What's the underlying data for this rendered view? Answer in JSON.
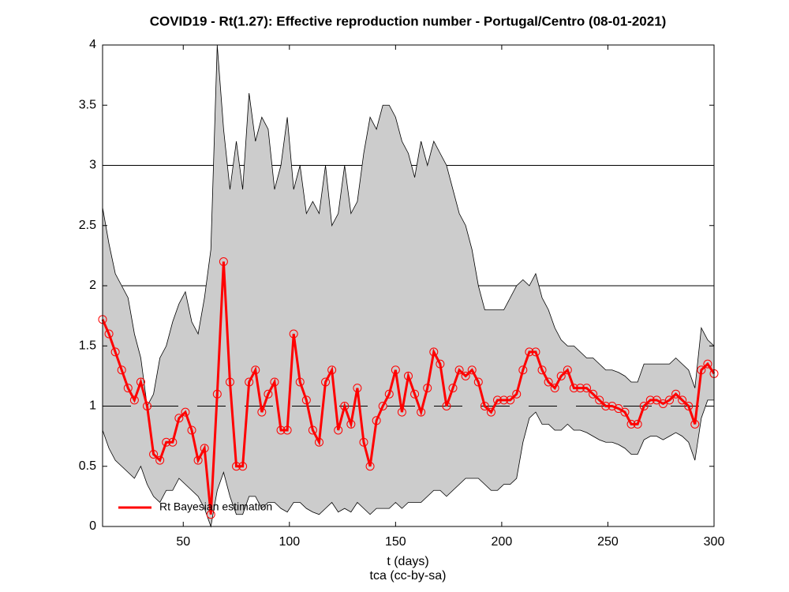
{
  "chart_data": {
    "type": "line",
    "title": "COVID19 - Rt(1.27): Effective reproduction number - Portugal/Centro (08-01-2021)",
    "x_label": "t (days)",
    "annotation": "tca (cc-by-sa)",
    "xlim": [
      12,
      300
    ],
    "xticks": [
      50,
      100,
      150,
      200,
      250,
      300
    ],
    "ylim": [
      0,
      4
    ],
    "yticks": [
      0,
      0.5,
      1,
      1.5,
      2,
      2.5,
      3,
      3.5,
      4
    ],
    "grid_lines": [
      1,
      2,
      3
    ],
    "reference_line": 1,
    "legend": "southwest",
    "x": [
      12,
      15,
      18,
      21,
      24,
      27,
      30,
      33,
      36,
      39,
      42,
      45,
      48,
      51,
      54,
      57,
      60,
      63,
      66,
      69,
      72,
      75,
      78,
      81,
      84,
      87,
      90,
      93,
      96,
      99,
      102,
      105,
      108,
      111,
      114,
      117,
      120,
      123,
      126,
      129,
      132,
      135,
      138,
      141,
      144,
      147,
      150,
      153,
      156,
      159,
      162,
      165,
      168,
      171,
      174,
      177,
      180,
      183,
      186,
      189,
      192,
      195,
      198,
      201,
      204,
      207,
      210,
      213,
      216,
      219,
      222,
      225,
      228,
      231,
      234,
      237,
      240,
      243,
      246,
      249,
      252,
      255,
      258,
      261,
      264,
      267,
      270,
      273,
      276,
      279,
      282,
      285,
      288,
      291,
      294,
      297,
      300
    ],
    "band": {
      "color": "#cccccc",
      "upper": [
        2.65,
        2.35,
        2.1,
        2.0,
        1.9,
        1.6,
        1.4,
        1.0,
        1.1,
        1.4,
        1.5,
        1.7,
        1.85,
        1.95,
        1.7,
        1.6,
        1.9,
        2.3,
        4.0,
        3.3,
        2.8,
        3.2,
        2.8,
        3.6,
        3.2,
        3.4,
        3.3,
        2.8,
        3.0,
        3.4,
        2.8,
        3.0,
        2.6,
        2.7,
        2.6,
        3.0,
        2.5,
        2.6,
        3.0,
        2.6,
        2.7,
        3.1,
        3.4,
        3.3,
        3.5,
        3.5,
        3.4,
        3.2,
        3.1,
        2.9,
        3.2,
        3.0,
        3.2,
        3.1,
        3.0,
        2.8,
        2.6,
        2.5,
        2.3,
        2.0,
        1.8,
        1.8,
        1.8,
        1.8,
        1.9,
        2.0,
        2.05,
        2.0,
        2.1,
        1.9,
        1.8,
        1.65,
        1.55,
        1.5,
        1.5,
        1.45,
        1.4,
        1.4,
        1.35,
        1.3,
        1.3,
        1.28,
        1.25,
        1.2,
        1.2,
        1.35,
        1.35,
        1.35,
        1.35,
        1.35,
        1.4,
        1.35,
        1.3,
        1.15,
        1.65,
        1.55,
        1.5
      ],
      "lower": [
        0.8,
        0.65,
        0.55,
        0.5,
        0.45,
        0.4,
        0.5,
        0.35,
        0.25,
        0.2,
        0.3,
        0.3,
        0.4,
        0.35,
        0.3,
        0.25,
        0.15,
        0.0,
        0.3,
        0.45,
        0.25,
        0.1,
        0.1,
        0.25,
        0.25,
        0.15,
        0.2,
        0.2,
        0.15,
        0.12,
        0.2,
        0.2,
        0.15,
        0.12,
        0.1,
        0.15,
        0.2,
        0.12,
        0.15,
        0.12,
        0.2,
        0.15,
        0.1,
        0.15,
        0.15,
        0.15,
        0.2,
        0.15,
        0.2,
        0.2,
        0.2,
        0.25,
        0.3,
        0.3,
        0.25,
        0.3,
        0.35,
        0.4,
        0.4,
        0.4,
        0.35,
        0.3,
        0.3,
        0.35,
        0.35,
        0.4,
        0.7,
        0.9,
        0.95,
        0.85,
        0.85,
        0.8,
        0.8,
        0.85,
        0.8,
        0.8,
        0.78,
        0.75,
        0.72,
        0.7,
        0.7,
        0.68,
        0.65,
        0.6,
        0.6,
        0.72,
        0.75,
        0.75,
        0.72,
        0.75,
        0.78,
        0.75,
        0.7,
        0.55,
        0.9,
        1.05,
        1.05
      ]
    },
    "series": [
      {
        "name": "Rt Bayesian estimation",
        "color": "#ff0000",
        "values": [
          1.72,
          1.6,
          1.45,
          1.3,
          1.15,
          1.05,
          1.2,
          1.0,
          0.6,
          0.55,
          0.7,
          0.7,
          0.9,
          0.95,
          0.8,
          0.55,
          0.65,
          0.1,
          1.1,
          2.2,
          1.2,
          0.5,
          0.5,
          1.2,
          1.3,
          0.95,
          1.1,
          1.2,
          0.8,
          0.8,
          1.6,
          1.2,
          1.05,
          0.8,
          0.7,
          1.2,
          1.3,
          0.8,
          1.0,
          0.85,
          1.15,
          0.7,
          0.5,
          0.88,
          1.0,
          1.1,
          1.3,
          0.95,
          1.25,
          1.1,
          0.95,
          1.15,
          1.45,
          1.35,
          1.0,
          1.15,
          1.3,
          1.25,
          1.3,
          1.2,
          1.0,
          0.95,
          1.05,
          1.05,
          1.05,
          1.1,
          1.3,
          1.45,
          1.45,
          1.3,
          1.2,
          1.15,
          1.25,
          1.3,
          1.15,
          1.15,
          1.15,
          1.1,
          1.05,
          1.0,
          1.0,
          0.98,
          0.95,
          0.85,
          0.85,
          1.0,
          1.05,
          1.05,
          1.02,
          1.05,
          1.1,
          1.05,
          1.0,
          0.85,
          1.3,
          1.35,
          1.27
        ]
      }
    ]
  }
}
